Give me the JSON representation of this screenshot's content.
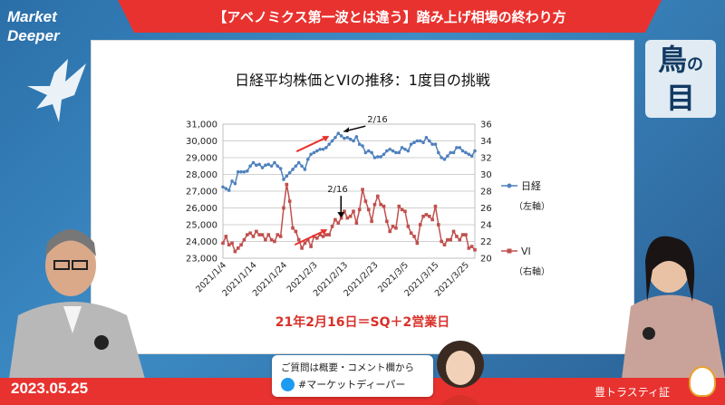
{
  "banner": {
    "title": "【アベノミクス第一波とは違う】踏み上げ相場の終わり方"
  },
  "brand_logo": {
    "line1": "Market",
    "line2": "Deeper"
  },
  "side_label": {
    "main": "鳥",
    "particle": "の",
    "second": "目"
  },
  "chart_data": {
    "type": "line",
    "title": "日経平均株価とVIの推移：1度目の挑戦",
    "x_tick_labels": [
      "2021/1/4",
      "2021/1/14",
      "2021/1/24",
      "2021/2/3",
      "2021/2/13",
      "2021/2/23",
      "2021/3/5",
      "2021/3/15",
      "2021/3/25"
    ],
    "left_axis": {
      "ticks": [
        "23,000",
        "24,000",
        "25,000",
        "26,000",
        "27,000",
        "28,000",
        "29,000",
        "30,000",
        "31,000"
      ],
      "ylim": [
        23000,
        31000
      ]
    },
    "right_axis": {
      "ticks": [
        "20",
        "22",
        "24",
        "26",
        "28",
        "30",
        "32",
        "34",
        "36"
      ],
      "ylim": [
        20,
        36
      ]
    },
    "grid": true,
    "series": [
      {
        "name": "日経",
        "axis_label": "（左軸）",
        "color": "#4f81bd",
        "axis": "left",
        "values": [
          27250,
          27150,
          27050,
          27600,
          27450,
          28150,
          28150,
          28150,
          28200,
          28500,
          28700,
          28550,
          28600,
          28400,
          28550,
          28600,
          28500,
          28700,
          28500,
          28350,
          27700,
          27900,
          28100,
          28300,
          28500,
          28700,
          28500,
          28300,
          28900,
          29200,
          29300,
          29400,
          29500,
          29500,
          29600,
          29800,
          30000,
          30200,
          30450,
          30300,
          30150,
          30200,
          30100,
          30000,
          30250,
          29800,
          29700,
          29300,
          29400,
          29300,
          29000,
          29050,
          29050,
          29200,
          29400,
          29500,
          29400,
          29300,
          29300,
          29600,
          29500,
          29400,
          29800,
          29900,
          30000,
          30000,
          29900,
          30200,
          30000,
          29800,
          29800,
          29300,
          29000,
          28900,
          29100,
          29300,
          29300,
          29600,
          29600,
          29400,
          29300,
          29200,
          29100,
          29400
        ]
      },
      {
        "name": "VI",
        "axis_label": "（右軸）",
        "color": "#c0504d",
        "axis": "right",
        "values": [
          21.8,
          22.6,
          21.6,
          21.8,
          20.8,
          21.2,
          21.6,
          22.2,
          22.8,
          23.0,
          22.6,
          23.2,
          22.8,
          22.8,
          22.2,
          22.8,
          22.2,
          22.0,
          22.8,
          22.6,
          26.0,
          28.8,
          26.8,
          23.6,
          23.2,
          22.2,
          21.2,
          21.8,
          22.2,
          21.4,
          22.6,
          22.4,
          22.8,
          22.6,
          22.8,
          22.8,
          23.8,
          24.6,
          24.2,
          24.8,
          25.6,
          24.8,
          25.0,
          25.6,
          24.2,
          25.8,
          28.2,
          26.8,
          25.8,
          24.4,
          26.4,
          27.4,
          26.4,
          26.2,
          24.4,
          23.2,
          23.8,
          23.6,
          26.2,
          25.8,
          25.6,
          23.8,
          23.0,
          22.6,
          21.8,
          24.0,
          25.0,
          25.2,
          25.0,
          24.6,
          26.2,
          24.0,
          22.0,
          21.6,
          22.2,
          22.2,
          23.2,
          22.6,
          22.2,
          22.8,
          22.8,
          21.2,
          21.4,
          21.0
        ]
      }
    ],
    "annotations": [
      {
        "text": "2/16",
        "near": "nikkei-peak"
      },
      {
        "text": "2/16",
        "near": "vi-rise"
      }
    ],
    "caption": "21年2月16日＝SQ＋2営業日"
  },
  "footer": {
    "date": "2023.05.25",
    "question_text": "ご質問は概要・コメント欄から",
    "hashtag": "#マーケットディーパー",
    "brand": "豊トラスティ証"
  },
  "colors": {
    "accent_red": "#e8322f",
    "nikkei_blue": "#4f81bd",
    "vi_red": "#c0504d"
  }
}
